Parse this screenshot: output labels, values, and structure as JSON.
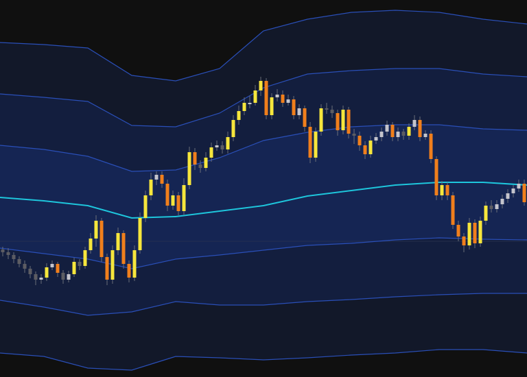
{
  "chart_data": {
    "type": "candlestick",
    "title": "",
    "xlabel": "",
    "ylabel": "",
    "ylim": [
      0,
      550
    ],
    "grid": false,
    "legend": "none",
    "colors": {
      "background": "#101010",
      "band_outer_fill": "#121829",
      "band_middle_fill": "#131e3e",
      "band_inner_fill": "#152553",
      "band_line": "#2a4fb8",
      "midline": "#1ec6dc",
      "up_strong": "#f6e63c",
      "up_weak": "#c4c4cc",
      "down_strong": "#f07f1c",
      "down_weak": "#5c5c62"
    },
    "candles_ohlc": [
      [
        186,
        190,
        176,
        182
      ],
      [
        182,
        188,
        172,
        178
      ],
      [
        178,
        182,
        166,
        172
      ],
      [
        172,
        176,
        160,
        165
      ],
      [
        165,
        170,
        152,
        158
      ],
      [
        158,
        162,
        144,
        150
      ],
      [
        150,
        154,
        134,
        142
      ],
      [
        142,
        150,
        136,
        145
      ],
      [
        145,
        166,
        140,
        160
      ],
      [
        160,
        170,
        156,
        165
      ],
      [
        165,
        168,
        146,
        152
      ],
      [
        152,
        156,
        136,
        142
      ],
      [
        142,
        155,
        138,
        150
      ],
      [
        150,
        174,
        146,
        168
      ],
      [
        168,
        172,
        156,
        162
      ],
      [
        162,
        190,
        158,
        185
      ],
      [
        185,
        210,
        180,
        202
      ],
      [
        202,
        236,
        190,
        228
      ],
      [
        228,
        232,
        168,
        175
      ],
      [
        175,
        180,
        134,
        142
      ],
      [
        142,
        192,
        136,
        185
      ],
      [
        185,
        218,
        178,
        210
      ],
      [
        210,
        214,
        158,
        165
      ],
      [
        165,
        170,
        138,
        145
      ],
      [
        145,
        192,
        140,
        185
      ],
      [
        185,
        240,
        180,
        232
      ],
      [
        232,
        272,
        226,
        265
      ],
      [
        265,
        298,
        258,
        288
      ],
      [
        288,
        300,
        280,
        295
      ],
      [
        295,
        300,
        276,
        282
      ],
      [
        282,
        288,
        242,
        250
      ],
      [
        250,
        272,
        244,
        265
      ],
      [
        265,
        270,
        236,
        242
      ],
      [
        242,
        290,
        236,
        280
      ],
      [
        280,
        336,
        274,
        328
      ],
      [
        328,
        334,
        302,
        310
      ],
      [
        310,
        316,
        298,
        305
      ],
      [
        305,
        328,
        300,
        320
      ],
      [
        320,
        342,
        314,
        335
      ],
      [
        335,
        345,
        330,
        338
      ],
      [
        338,
        344,
        326,
        332
      ],
      [
        332,
        358,
        326,
        350
      ],
      [
        350,
        382,
        344,
        375
      ],
      [
        375,
        396,
        368,
        388
      ],
      [
        388,
        408,
        382,
        400
      ],
      [
        400,
        410,
        392,
        400
      ],
      [
        400,
        426,
        396,
        418
      ],
      [
        418,
        438,
        410,
        432
      ],
      [
        432,
        436,
        376,
        382
      ],
      [
        382,
        414,
        376,
        408
      ],
      [
        408,
        420,
        402,
        412
      ],
      [
        412,
        418,
        394,
        400
      ],
      [
        400,
        412,
        396,
        405
      ],
      [
        405,
        410,
        376,
        382
      ],
      [
        382,
        398,
        376,
        392
      ],
      [
        392,
        396,
        358,
        365
      ],
      [
        365,
        372,
        312,
        320
      ],
      [
        320,
        364,
        314,
        358
      ],
      [
        358,
        398,
        352,
        392
      ],
      [
        392,
        400,
        384,
        390
      ],
      [
        390,
        396,
        378,
        385
      ],
      [
        385,
        390,
        352,
        360
      ],
      [
        360,
        396,
        354,
        390
      ],
      [
        390,
        394,
        348,
        355
      ],
      [
        355,
        362,
        340,
        352
      ],
      [
        352,
        358,
        330,
        338
      ],
      [
        338,
        344,
        318,
        325
      ],
      [
        325,
        352,
        320,
        345
      ],
      [
        345,
        356,
        340,
        350
      ],
      [
        350,
        364,
        344,
        358
      ],
      [
        358,
        374,
        352,
        368
      ],
      [
        368,
        372,
        344,
        350
      ],
      [
        350,
        364,
        344,
        358
      ],
      [
        358,
        362,
        346,
        352
      ],
      [
        352,
        370,
        346,
        365
      ],
      [
        365,
        382,
        360,
        375
      ],
      [
        375,
        380,
        344,
        350
      ],
      [
        350,
        360,
        346,
        355
      ],
      [
        355,
        360,
        312,
        318
      ],
      [
        318,
        322,
        258,
        265
      ],
      [
        265,
        286,
        258,
        280
      ],
      [
        280,
        284,
        258,
        265
      ],
      [
        265,
        270,
        216,
        222
      ],
      [
        222,
        228,
        198,
        205
      ],
      [
        205,
        210,
        182,
        192
      ],
      [
        192,
        232,
        186,
        225
      ],
      [
        225,
        230,
        188,
        195
      ],
      [
        195,
        234,
        190,
        228
      ],
      [
        228,
        256,
        222,
        250
      ],
      [
        250,
        258,
        240,
        245
      ],
      [
        245,
        258,
        240,
        252
      ],
      [
        252,
        266,
        246,
        260
      ],
      [
        260,
        274,
        254,
        268
      ],
      [
        268,
        280,
        262,
        275
      ],
      [
        275,
        288,
        270,
        282
      ],
      [
        282,
        288,
        250,
        255
      ]
    ],
    "bands": {
      "x_bar_index": [
        0,
        8,
        16,
        24,
        32,
        40,
        48,
        56,
        64,
        72,
        80,
        88,
        96
      ],
      "upper_3": [
        488,
        485,
        480,
        440,
        432,
        450,
        505,
        522,
        532,
        535,
        532,
        522,
        515
      ],
      "upper_2": [
        413,
        408,
        402,
        367,
        365,
        385,
        422,
        442,
        447,
        450,
        450,
        442,
        438
      ],
      "upper_1": [
        338,
        332,
        322,
        300,
        302,
        320,
        345,
        357,
        365,
        368,
        368,
        362,
        360
      ],
      "middle": [
        262,
        257,
        250,
        232,
        234,
        242,
        250,
        264,
        272,
        280,
        284,
        284,
        280
      ],
      "lower_1": [
        188,
        180,
        172,
        158,
        172,
        178,
        185,
        192,
        195,
        200,
        203,
        201,
        200
      ],
      "lower_2": [
        112,
        102,
        90,
        95,
        110,
        105,
        105,
        110,
        113,
        117,
        120,
        122,
        122
      ],
      "lower_3": [
        35,
        30,
        13,
        10,
        30,
        28,
        25,
        28,
        32,
        35,
        40,
        40,
        35
      ]
    },
    "reference_level": 198
  }
}
